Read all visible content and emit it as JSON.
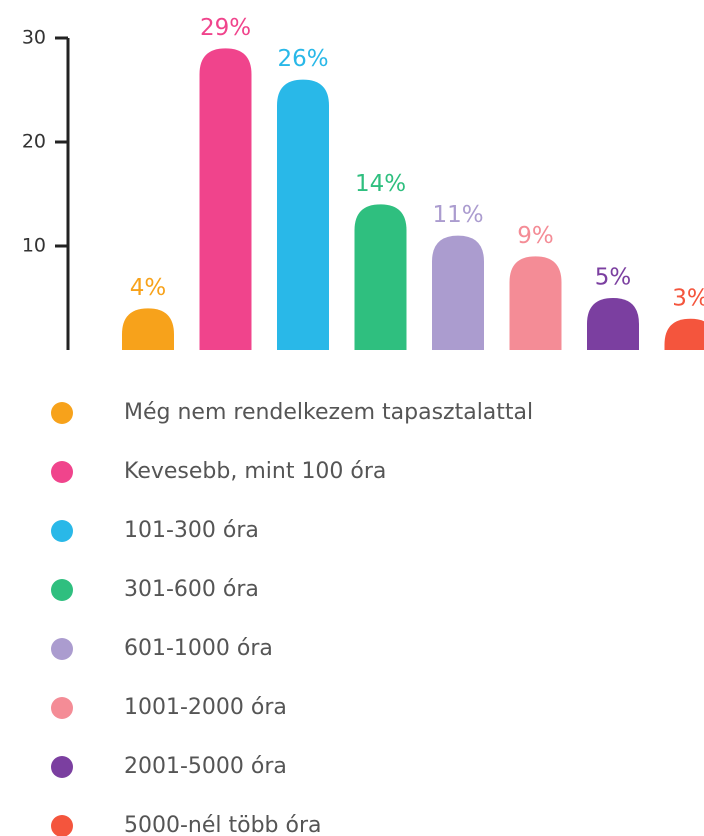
{
  "chart_data": {
    "type": "bar",
    "categories": [
      "Még nem rendelkezem tapasztalattal",
      "Kevesebb, mint 100 óra",
      "101-300 óra",
      "301-600 óra",
      "601-1000 óra",
      "1001-2000 óra",
      "2001-5000 óra",
      "5000-nél több óra"
    ],
    "values": [
      4,
      29,
      26,
      14,
      11,
      9,
      5,
      3
    ],
    "value_labels": [
      "4%",
      "29%",
      "26%",
      "14%",
      "11%",
      "9%",
      "5%",
      "3%"
    ],
    "colors": [
      "#f7a21b",
      "#f0448c",
      "#29b8e8",
      "#2fbf7f",
      "#ab9ccf",
      "#f48c96",
      "#7b3fa0",
      "#f4553d"
    ],
    "ylim": [
      0,
      30
    ],
    "yticks": [
      10,
      20,
      30
    ],
    "legend": "bottom"
  }
}
